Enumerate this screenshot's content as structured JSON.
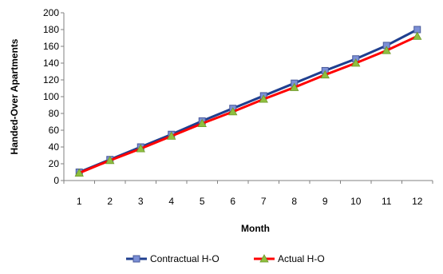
{
  "chart_data": {
    "type": "line",
    "title": "",
    "xlabel": "Month",
    "ylabel": "Handed-Over Apartments",
    "x": [
      "1",
      "2",
      "3",
      "4",
      "5",
      "6",
      "7",
      "8",
      "9",
      "10",
      "11",
      "12"
    ],
    "ylim": [
      0,
      200
    ],
    "yticks": [
      0,
      20,
      40,
      60,
      80,
      100,
      120,
      140,
      160,
      180,
      200
    ],
    "grid": false,
    "legend_position": "bottom",
    "series": [
      {
        "name": "Contractual H-O",
        "color": "#1f3f8f",
        "marker": "square",
        "marker_color": "#7b8fd6",
        "values": [
          10,
          25,
          40,
          55,
          71,
          86,
          101,
          116,
          131,
          145,
          161,
          180
        ]
      },
      {
        "name": "Actual H-O",
        "color": "#ff0000",
        "marker": "triangle",
        "marker_color": "#8fbf3f",
        "values": [
          9,
          24,
          38,
          53,
          68,
          82,
          97,
          111,
          126,
          140,
          155,
          172
        ]
      }
    ]
  }
}
